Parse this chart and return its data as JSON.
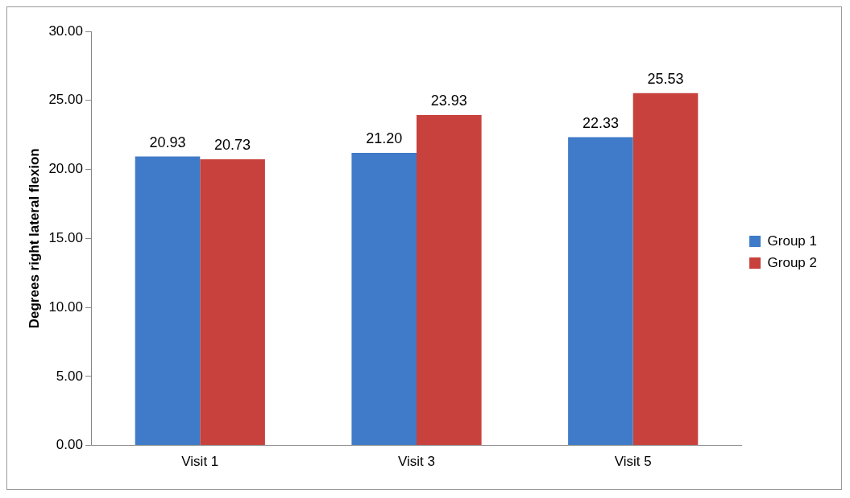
{
  "chart_data": {
    "type": "bar",
    "ylabel": "Degrees right lateral flexion",
    "categories": [
      "Visit 1",
      "Visit 3",
      "Visit 5"
    ],
    "series": [
      {
        "name": "Group 1",
        "color": "#3f7bc8",
        "values": [
          20.93,
          21.2,
          22.33
        ],
        "value_labels": [
          "20.93",
          "21.20",
          "22.33"
        ]
      },
      {
        "name": "Group 2",
        "color": "#c8413d",
        "values": [
          20.73,
          23.93,
          25.53
        ],
        "value_labels": [
          "20.73",
          "23.93",
          "25.53"
        ]
      }
    ],
    "ylim": [
      0,
      30
    ],
    "yticks": [
      {
        "value": 0,
        "label": "0.00"
      },
      {
        "value": 5,
        "label": "5.00"
      },
      {
        "value": 10,
        "label": "10.00"
      },
      {
        "value": 15,
        "label": "15.00"
      },
      {
        "value": 20,
        "label": "20.00"
      },
      {
        "value": 25,
        "label": "25.00"
      },
      {
        "value": 30,
        "label": "30.00"
      }
    ],
    "legend": "right"
  }
}
